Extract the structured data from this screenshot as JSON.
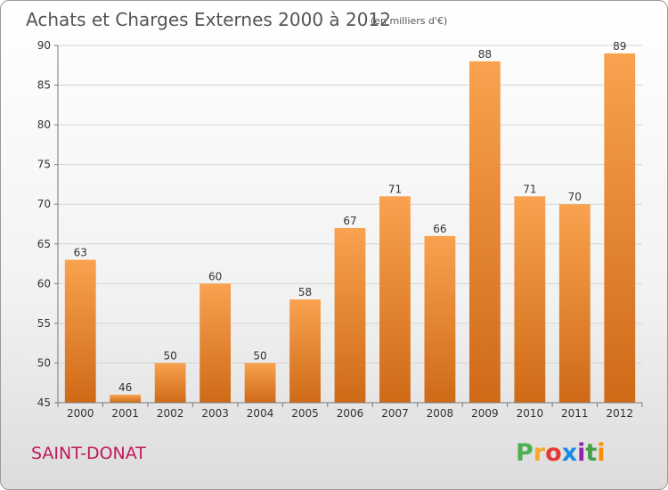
{
  "title": "Achats et Charges Externes 2000 à 2012",
  "subtitle": "(en milliers d'€)",
  "location": "SAINT-DONAT",
  "brand": {
    "letters": [
      "P",
      "r",
      "o",
      "x",
      "i",
      "t",
      "i"
    ],
    "colors": [
      "#4caf50",
      "#f9a825",
      "#e53935",
      "#1e88e5",
      "#8e24aa",
      "#43a047",
      "#fb8c00"
    ]
  },
  "colors": {
    "bar_top": "#f9a24f",
    "bar_bottom": "#cf6a17",
    "title": "#555555",
    "location": "#c2185b"
  },
  "chart_data": {
    "type": "bar",
    "categories": [
      "2000",
      "2001",
      "2002",
      "2003",
      "2004",
      "2005",
      "2006",
      "2007",
      "2008",
      "2009",
      "2010",
      "2011",
      "2012"
    ],
    "values": [
      63,
      46,
      50,
      60,
      50,
      58,
      67,
      71,
      66,
      88,
      71,
      70,
      89
    ],
    "ylim": [
      45,
      90
    ],
    "yticks": [
      45,
      50,
      55,
      60,
      65,
      70,
      75,
      80,
      85,
      90
    ],
    "grid": true,
    "xlabel": "",
    "ylabel": ""
  }
}
